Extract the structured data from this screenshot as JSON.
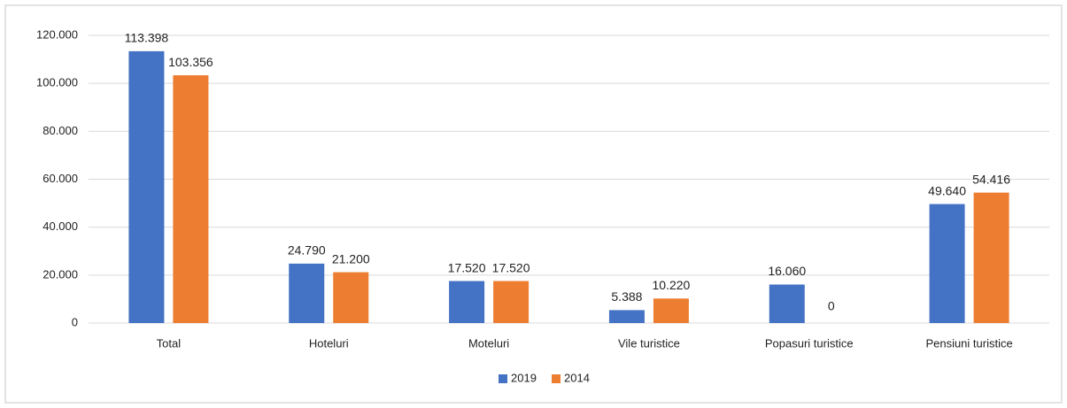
{
  "chart_data": {
    "type": "bar",
    "categories": [
      "Total",
      "Hoteluri",
      "Moteluri",
      "Vile turistice",
      "Popasuri turistice",
      "Pensiuni turistice"
    ],
    "series": [
      {
        "name": "2019",
        "color": "#4472c4",
        "values": [
          113398,
          24790,
          17520,
          5388,
          16060,
          49640
        ],
        "value_labels": [
          "113.398",
          "24.790",
          "17.520",
          "5.388",
          "16.060",
          "49.640"
        ]
      },
      {
        "name": "2014",
        "color": "#ed7d31",
        "values": [
          103356,
          21200,
          17520,
          10220,
          0,
          54416
        ],
        "value_labels": [
          "103.356",
          "21.200",
          "17.520",
          "10.220",
          "0",
          "54.416"
        ]
      }
    ],
    "ylim": [
      0,
      120000
    ],
    "yticks": [
      0,
      {
        "value": 20000,
        "label": "20.000"
      },
      {
        "value": 40000,
        "label": "40.000"
      },
      {
        "value": 60000,
        "label": "60.000"
      },
      {
        "value": 80000,
        "label": "80.000"
      },
      {
        "value": 100000,
        "label": "100.000"
      },
      {
        "value": 120000,
        "label": "120.000"
      }
    ],
    "grid": true,
    "legend": "bottom"
  }
}
